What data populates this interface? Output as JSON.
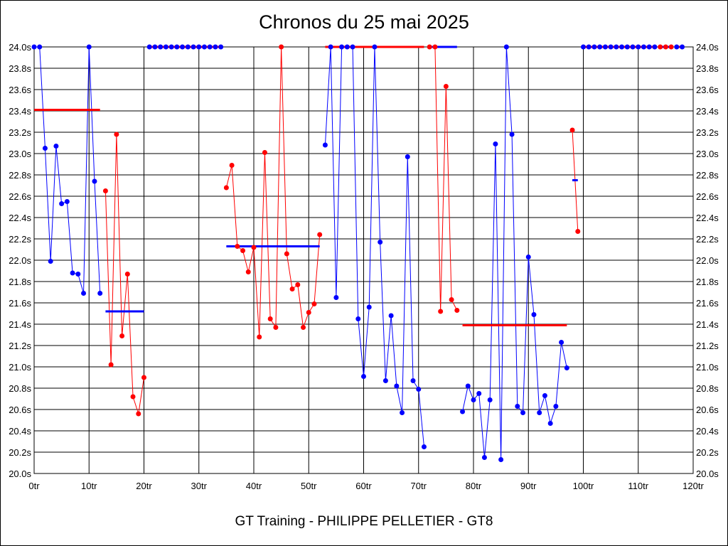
{
  "chart_data": {
    "type": "line",
    "title": "Chronos du 25 mai 2025",
    "footer": "GT Training - PHILIPPE PELLETIER - GT8",
    "xlim": [
      0,
      120
    ],
    "ylim": [
      20.0,
      24.0
    ],
    "x_ticks": [
      "0tr",
      "10tr",
      "20tr",
      "30tr",
      "40tr",
      "50tr",
      "60tr",
      "70tr",
      "80tr",
      "90tr",
      "100tr",
      "110tr",
      "120tr"
    ],
    "y_ticks": [
      "20.0s",
      "20.2s",
      "20.4s",
      "20.6s",
      "20.8s",
      "21.0s",
      "21.2s",
      "21.4s",
      "21.6s",
      "21.8s",
      "22.0s",
      "22.2s",
      "22.4s",
      "22.6s",
      "22.8s",
      "23.0s",
      "23.2s",
      "23.4s",
      "23.6s",
      "23.8s",
      "24.0s"
    ],
    "grid": true,
    "colors": {
      "blue": "#0000ff",
      "red": "#ff0000"
    },
    "stints": [
      {
        "color": "blue",
        "avg": 23.41,
        "avg_color": "red",
        "laps": [
          0,
          1,
          2,
          3,
          4,
          5,
          6,
          7,
          8,
          9,
          10,
          11,
          12
        ],
        "times": [
          24.0,
          24.0,
          23.05,
          21.99,
          23.07,
          22.53,
          22.55,
          21.88,
          21.87,
          21.69,
          24.0,
          22.74,
          21.69
        ]
      },
      {
        "color": "red",
        "avg": 21.52,
        "avg_color": "blue",
        "laps": [
          13,
          14,
          15,
          16,
          17,
          18,
          19,
          20
        ],
        "times": [
          22.65,
          21.02,
          23.18,
          21.29,
          21.87,
          20.72,
          20.56,
          20.9
        ]
      },
      {
        "color": "blue",
        "avg": 24.0,
        "avg_color": "red",
        "laps": [
          21,
          22,
          23,
          24,
          25,
          26,
          27,
          28,
          29,
          30,
          31,
          32,
          33,
          34
        ],
        "times": [
          24.0,
          24.0,
          24.0,
          24.0,
          24.0,
          24.0,
          24.0,
          24.0,
          24.0,
          24.0,
          24.0,
          24.0,
          24.0,
          24.0
        ]
      },
      {
        "color": "red",
        "avg": 22.13,
        "avg_color": "blue",
        "laps": [
          35,
          36,
          37,
          38,
          39,
          40,
          41,
          42,
          43,
          44,
          45,
          46,
          47,
          48,
          49,
          50,
          51,
          52
        ],
        "times": [
          22.68,
          22.89,
          22.13,
          22.09,
          21.89,
          22.12,
          21.28,
          23.01,
          21.45,
          21.37,
          24.0,
          22.06,
          21.73,
          21.77,
          21.37,
          21.51,
          21.59,
          22.24
        ]
      },
      {
        "color": "blue",
        "avg": 24.0,
        "avg_color": "red",
        "laps": [
          53,
          54,
          55,
          56,
          57,
          58,
          59,
          60,
          61,
          62,
          63,
          64,
          65,
          66,
          67,
          68,
          69,
          70,
          71
        ],
        "times": [
          23.08,
          24.0,
          21.65,
          24.0,
          24.0,
          24.0,
          21.45,
          20.91,
          21.56,
          24.0,
          22.17,
          20.87,
          21.48,
          20.82,
          20.57,
          22.97,
          20.87,
          20.79,
          20.25
        ]
      },
      {
        "color": "red",
        "avg": 24.0,
        "avg_color": "blue",
        "laps": [
          72,
          73,
          74,
          75,
          76,
          77
        ],
        "times": [
          24.0,
          24.0,
          21.52,
          23.63,
          21.63,
          21.53
        ]
      },
      {
        "color": "blue",
        "avg": 21.39,
        "avg_color": "red",
        "laps": [
          78,
          79,
          80,
          81,
          82,
          83,
          84,
          85,
          86,
          87,
          88,
          89,
          90,
          91,
          92,
          93,
          94,
          95,
          96,
          97
        ],
        "times": [
          20.58,
          20.82,
          20.69,
          20.75,
          20.15,
          20.69,
          23.09,
          20.13,
          24.0,
          23.18,
          20.63,
          20.57,
          22.03,
          21.49,
          20.57,
          20.73,
          20.47,
          20.63,
          21.23,
          20.99
        ]
      },
      {
        "color": "red",
        "avg": 22.75,
        "avg_color": "blue",
        "laps": [
          98,
          99
        ],
        "times": [
          23.22,
          22.27
        ]
      },
      {
        "color": "blue",
        "avg": 24.0,
        "avg_color": "red",
        "laps": [
          100,
          101,
          102,
          103,
          104,
          105,
          106,
          107,
          108,
          109,
          110,
          111,
          112,
          113
        ],
        "times": [
          24.0,
          24.0,
          24.0,
          24.0,
          24.0,
          24.0,
          24.0,
          24.0,
          24.0,
          24.0,
          24.0,
          24.0,
          24.0,
          24.0
        ]
      },
      {
        "color": "red",
        "avg": 24.0,
        "avg_color": "blue",
        "laps": [
          114,
          115,
          116
        ],
        "times": [
          24.0,
          24.0,
          24.0
        ]
      },
      {
        "color": "blue",
        "avg": 24.0,
        "avg_color": "red",
        "laps": [
          117,
          118
        ],
        "times": [
          24.0,
          24.0
        ]
      }
    ]
  }
}
